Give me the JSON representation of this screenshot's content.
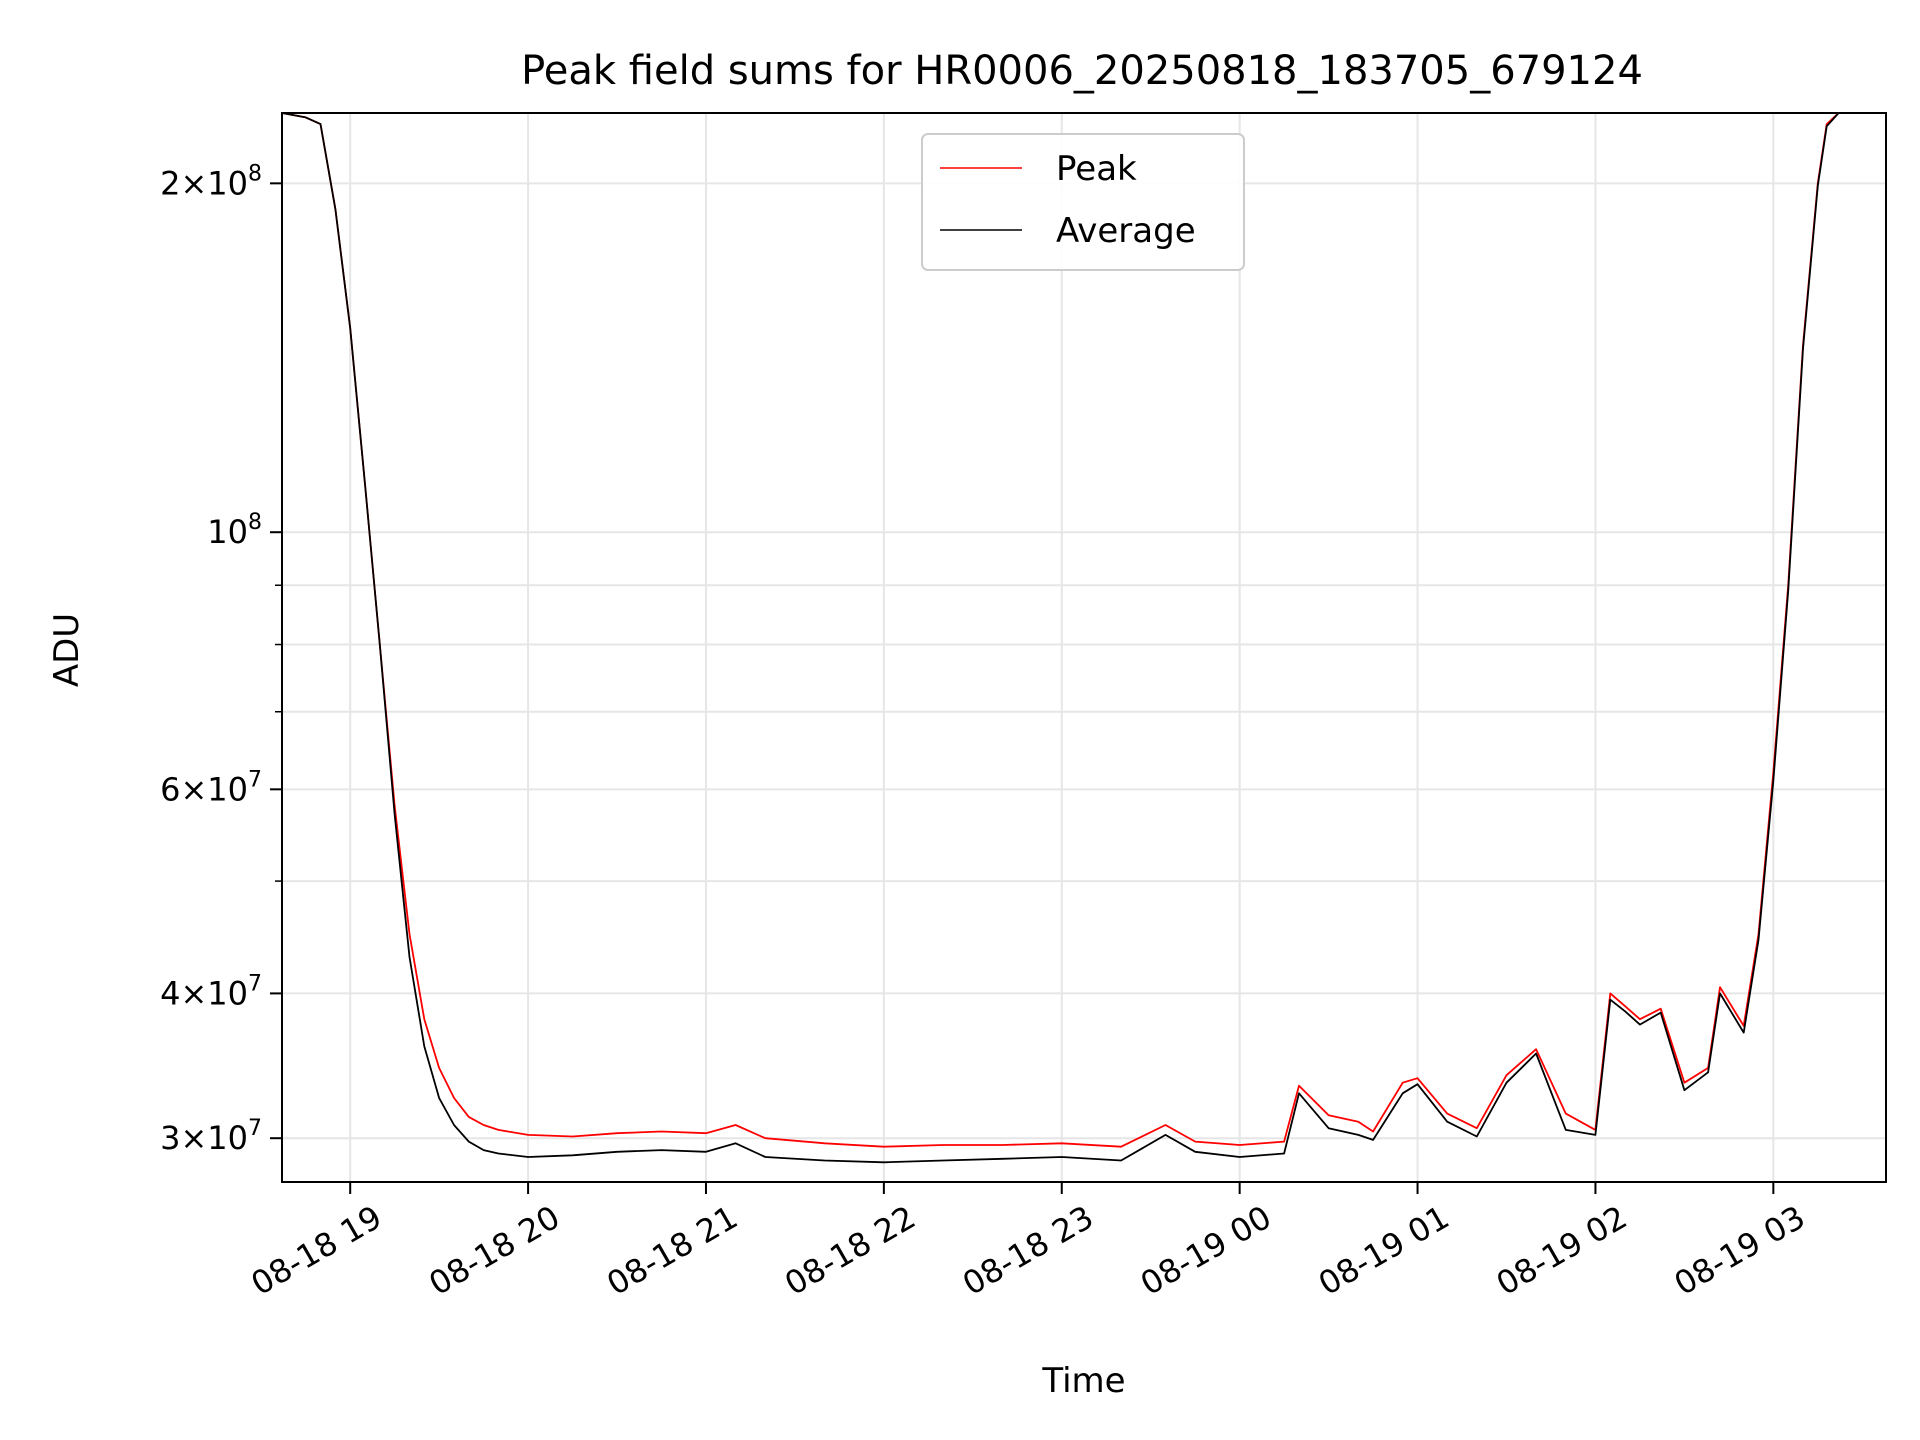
{
  "chart_data": {
    "type": "line",
    "title": "Peak field sums for HR0006_20250818_183705_679124",
    "xlabel": "Time",
    "ylabel": "ADU",
    "yscale": "log",
    "ylim": [
      27500000,
      230000000
    ],
    "xlim": [
      "08-18 18:37",
      "08-19 03:38"
    ],
    "grid": true,
    "legend_position": "top-center",
    "x_ticks": [
      "08-18 19",
      "08-18 20",
      "08-18 21",
      "08-18 22",
      "08-18 23",
      "08-19 00",
      "08-19 01",
      "08-19 02",
      "08-19 03"
    ],
    "y_ticks": [
      {
        "value": 30000000,
        "mantissa": "3",
        "exp": "7"
      },
      {
        "value": 40000000,
        "mantissa": "4",
        "exp": "7"
      },
      {
        "value": 60000000,
        "mantissa": "6",
        "exp": "7"
      },
      {
        "value": 100000000,
        "mantissa": "",
        "exp": "8"
      },
      {
        "value": 200000000,
        "mantissa": "2",
        "exp": "8"
      }
    ],
    "y_minor_ticks": [
      50000000,
      70000000,
      80000000,
      90000000
    ],
    "series": [
      {
        "name": "Peak",
        "color": "#ff0000",
        "points": [
          [
            "08-18 18:37",
            230000000
          ],
          [
            "08-18 18:45",
            228000000
          ],
          [
            "08-18 18:50",
            225000000
          ],
          [
            "08-18 18:55",
            190000000
          ],
          [
            "08-18 19:00",
            150000000
          ],
          [
            "08-18 19:05",
            110000000
          ],
          [
            "08-18 19:10",
            80000000
          ],
          [
            "08-18 19:15",
            58000000
          ],
          [
            "08-18 19:20",
            45000000
          ],
          [
            "08-18 19:25",
            38000000
          ],
          [
            "08-18 19:30",
            34500000
          ],
          [
            "08-18 19:35",
            32500000
          ],
          [
            "08-18 19:40",
            31300000
          ],
          [
            "08-18 19:45",
            30800000
          ],
          [
            "08-18 19:50",
            30500000
          ],
          [
            "08-18 20:00",
            30200000
          ],
          [
            "08-18 20:15",
            30100000
          ],
          [
            "08-18 20:30",
            30300000
          ],
          [
            "08-18 20:45",
            30400000
          ],
          [
            "08-18 21:00",
            30300000
          ],
          [
            "08-18 21:10",
            30800000
          ],
          [
            "08-18 21:20",
            30000000
          ],
          [
            "08-18 21:40",
            29700000
          ],
          [
            "08-18 22:00",
            29500000
          ],
          [
            "08-18 22:20",
            29600000
          ],
          [
            "08-18 22:40",
            29600000
          ],
          [
            "08-18 23:00",
            29700000
          ],
          [
            "08-18 23:20",
            29500000
          ],
          [
            "08-18 23:35",
            30800000
          ],
          [
            "08-18 23:45",
            29800000
          ],
          [
            "08-19 00:00",
            29600000
          ],
          [
            "08-19 00:15",
            29800000
          ],
          [
            "08-19 00:20",
            33300000
          ],
          [
            "08-19 00:30",
            31400000
          ],
          [
            "08-19 00:40",
            31000000
          ],
          [
            "08-19 00:45",
            30400000
          ],
          [
            "08-19 00:55",
            33500000
          ],
          [
            "08-19 01:00",
            33800000
          ],
          [
            "08-19 01:10",
            31500000
          ],
          [
            "08-19 01:20",
            30600000
          ],
          [
            "08-19 01:30",
            34000000
          ],
          [
            "08-19 01:40",
            35800000
          ],
          [
            "08-19 01:50",
            31500000
          ],
          [
            "08-19 02:00",
            30500000
          ],
          [
            "08-19 02:05",
            40000000
          ],
          [
            "08-19 02:10",
            39000000
          ],
          [
            "08-19 02:15",
            38000000
          ],
          [
            "08-19 02:22",
            38800000
          ],
          [
            "08-19 02:30",
            33500000
          ],
          [
            "08-19 02:38",
            34500000
          ],
          [
            "08-19 02:42",
            40500000
          ],
          [
            "08-19 02:50",
            37500000
          ],
          [
            "08-19 02:55",
            45000000
          ],
          [
            "08-19 03:00",
            62000000
          ],
          [
            "08-19 03:05",
            90000000
          ],
          [
            "08-19 03:10",
            145000000
          ],
          [
            "08-19 03:15",
            200000000
          ],
          [
            "08-19 03:18",
            225000000
          ],
          [
            "08-19 03:22",
            230000000
          ]
        ]
      },
      {
        "name": "Average",
        "color": "#000000",
        "points": [
          [
            "08-18 18:37",
            230000000
          ],
          [
            "08-18 18:45",
            228000000
          ],
          [
            "08-18 18:50",
            225000000
          ],
          [
            "08-18 18:55",
            190000000
          ],
          [
            "08-18 19:00",
            150000000
          ],
          [
            "08-18 19:05",
            110000000
          ],
          [
            "08-18 19:10",
            80000000
          ],
          [
            "08-18 19:15",
            57000000
          ],
          [
            "08-18 19:20",
            43000000
          ],
          [
            "08-18 19:25",
            36000000
          ],
          [
            "08-18 19:30",
            32500000
          ],
          [
            "08-18 19:35",
            30800000
          ],
          [
            "08-18 19:40",
            29800000
          ],
          [
            "08-18 19:45",
            29300000
          ],
          [
            "08-18 19:50",
            29100000
          ],
          [
            "08-18 20:00",
            28900000
          ],
          [
            "08-18 20:15",
            29000000
          ],
          [
            "08-18 20:30",
            29200000
          ],
          [
            "08-18 20:45",
            29300000
          ],
          [
            "08-18 21:00",
            29200000
          ],
          [
            "08-18 21:10",
            29700000
          ],
          [
            "08-18 21:20",
            28900000
          ],
          [
            "08-18 21:40",
            28700000
          ],
          [
            "08-18 22:00",
            28600000
          ],
          [
            "08-18 22:20",
            28700000
          ],
          [
            "08-18 22:40",
            28800000
          ],
          [
            "08-18 23:00",
            28900000
          ],
          [
            "08-18 23:20",
            28700000
          ],
          [
            "08-18 23:35",
            30200000
          ],
          [
            "08-18 23:45",
            29200000
          ],
          [
            "08-19 00:00",
            28900000
          ],
          [
            "08-19 00:15",
            29100000
          ],
          [
            "08-19 00:20",
            32800000
          ],
          [
            "08-19 00:30",
            30600000
          ],
          [
            "08-19 00:40",
            30200000
          ],
          [
            "08-19 00:45",
            29900000
          ],
          [
            "08-19 00:55",
            32800000
          ],
          [
            "08-19 01:00",
            33400000
          ],
          [
            "08-19 01:10",
            31000000
          ],
          [
            "08-19 01:20",
            30100000
          ],
          [
            "08-19 01:30",
            33500000
          ],
          [
            "08-19 01:40",
            35500000
          ],
          [
            "08-19 01:50",
            30500000
          ],
          [
            "08-19 02:00",
            30200000
          ],
          [
            "08-19 02:05",
            39500000
          ],
          [
            "08-19 02:10",
            38600000
          ],
          [
            "08-19 02:15",
            37600000
          ],
          [
            "08-19 02:22",
            38500000
          ],
          [
            "08-19 02:30",
            33000000
          ],
          [
            "08-19 02:38",
            34200000
          ],
          [
            "08-19 02:42",
            40000000
          ],
          [
            "08-19 02:50",
            37000000
          ],
          [
            "08-19 02:55",
            44500000
          ],
          [
            "08-19 03:00",
            61000000
          ],
          [
            "08-19 03:05",
            89000000
          ],
          [
            "08-19 03:10",
            144000000
          ],
          [
            "08-19 03:15",
            199000000
          ],
          [
            "08-19 03:18",
            224000000
          ],
          [
            "08-19 03:22",
            230000000
          ]
        ]
      }
    ]
  }
}
